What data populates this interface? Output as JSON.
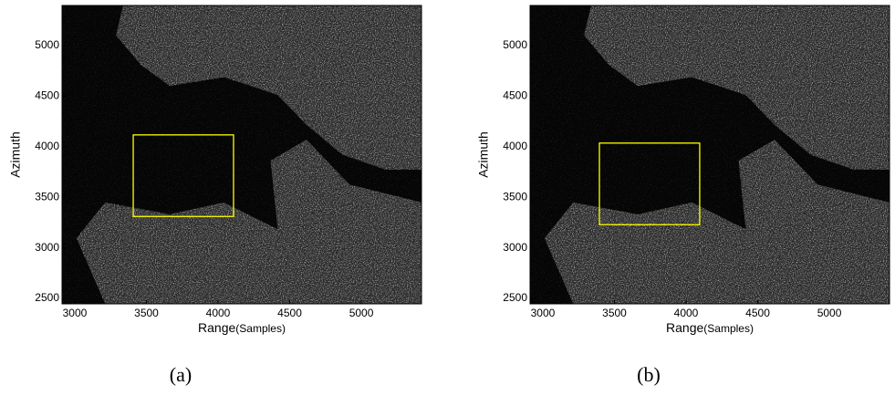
{
  "charts": [
    {
      "type": "image",
      "caption": "(a)",
      "xlabel": "Range",
      "xlabel_unit": "(Samples)",
      "ylabel": "Azimuth",
      "xlim": [
        2911,
        5420
      ],
      "ylim": [
        2446,
        5397
      ],
      "xticks": [
        3000,
        3500,
        4000,
        4500,
        5000
      ],
      "yticks": [
        2500,
        3000,
        3500,
        4000,
        4500,
        5000
      ],
      "box": {
        "x": [
          3408,
          4108
        ],
        "y": [
          3310,
          4117
        ],
        "color": "#ffff00"
      }
    },
    {
      "type": "image",
      "caption": "(b)",
      "xlabel": "Range",
      "xlabel_unit": "(Samples)",
      "ylabel": "Azimuth",
      "xlim": [
        2911,
        5420
      ],
      "ylim": [
        2446,
        5397
      ],
      "xticks": [
        3000,
        3500,
        4000,
        4500,
        5000
      ],
      "yticks": [
        2500,
        3000,
        3500,
        4000,
        4500,
        5000
      ],
      "box": {
        "x": [
          3395,
          4095
        ],
        "y": [
          3229,
          4036
        ],
        "color": "#ffff00"
      }
    }
  ]
}
